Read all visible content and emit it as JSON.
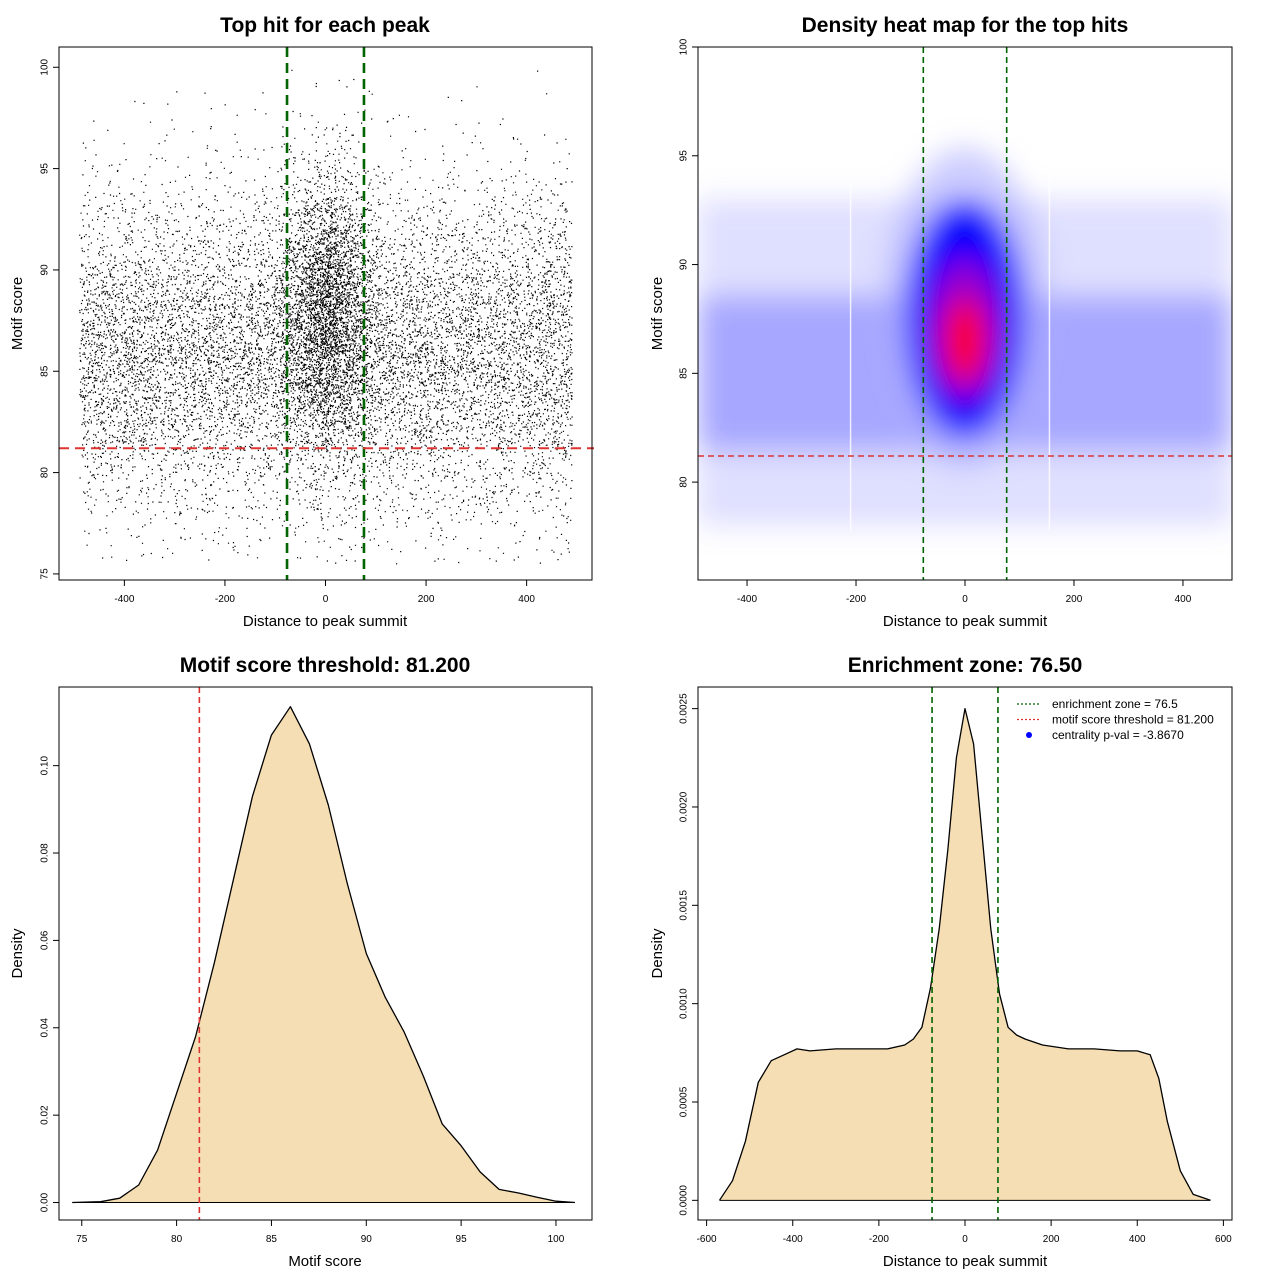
{
  "chart_data": [
    {
      "type": "scatter",
      "title": "Top hit for each peak",
      "xlabel": "Distance to peak summit",
      "ylabel": "Motif score",
      "xlim": [
        -530,
        530
      ],
      "ylim": [
        74.7,
        101.0
      ],
      "xticks": [
        -400,
        -200,
        0,
        200,
        400
      ],
      "yticks": [
        75,
        80,
        85,
        90,
        95,
        100
      ],
      "point_cloud": {
        "x_range": [
          -490,
          490
        ],
        "background_mean_score": 86,
        "background_sd": 4,
        "central_mean_score": 88,
        "central_sd": 3.5,
        "central_sd_x": 45,
        "approx_points": 20000
      },
      "vlines": [
        {
          "x": -76.5,
          "color": "#006400",
          "style": "dashed"
        },
        {
          "x": 76.5,
          "color": "#006400",
          "style": "dashed"
        }
      ],
      "hlines": [
        {
          "y": 81.2,
          "color": "#dd3333",
          "style": "dashed"
        }
      ],
      "grid": false
    },
    {
      "type": "heatmap",
      "title": "Density heat map for the top hits",
      "xlabel": "Distance to peak summit",
      "ylabel": "Motif score",
      "xlim": [
        -490,
        490
      ],
      "ylim": [
        75.5,
        100.0
      ],
      "xticks": [
        -400,
        -200,
        0,
        200,
        400
      ],
      "yticks": [
        80,
        85,
        90,
        95,
        100
      ],
      "colormap": [
        "#ffffff",
        "#0000ff",
        "#ff0000"
      ],
      "peak": {
        "x": 0,
        "y": 86.5
      },
      "vlines": [
        {
          "x": -76.5,
          "color": "#006400",
          "style": "dashed"
        },
        {
          "x": 76.5,
          "color": "#006400",
          "style": "dashed"
        }
      ],
      "hlines": [
        {
          "y": 81.2,
          "color": "#dd3333",
          "style": "dashed"
        }
      ],
      "grid": false
    },
    {
      "type": "area",
      "title": "Motif score threshold: 81.200",
      "xlabel": "Motif score",
      "ylabel": "Density",
      "xlim": [
        73.8,
        101.9
      ],
      "ylim": [
        -0.004,
        0.118
      ],
      "xticks": [
        75,
        80,
        85,
        90,
        95,
        100
      ],
      "yticks": [
        0.0,
        0.02,
        0.04,
        0.06,
        0.08,
        0.1
      ],
      "x": [
        74.5,
        76,
        77,
        78,
        79,
        80,
        81,
        82,
        83,
        84,
        85,
        86,
        87,
        88,
        89,
        90,
        91,
        92,
        93,
        94,
        95,
        96,
        97,
        98,
        99,
        100,
        101
      ],
      "y": [
        0.0,
        0.0002,
        0.001,
        0.004,
        0.012,
        0.025,
        0.038,
        0.055,
        0.074,
        0.093,
        0.107,
        0.1135,
        0.105,
        0.091,
        0.073,
        0.057,
        0.047,
        0.039,
        0.029,
        0.018,
        0.013,
        0.007,
        0.003,
        0.0022,
        0.0012,
        0.0003,
        0.0
      ],
      "fill": "#f5deb3",
      "vlines": [
        {
          "x": 81.2,
          "color": "#dd3333",
          "style": "dashed"
        }
      ],
      "grid": false
    },
    {
      "type": "area",
      "title": "Enrichment zone: 76.50",
      "xlabel": "Distance to peak summit",
      "ylabel": "Density",
      "xlim": [
        -620,
        620
      ],
      "ylim": [
        -0.0001,
        0.00261
      ],
      "xticks": [
        -600,
        -400,
        -200,
        0,
        200,
        400,
        600
      ],
      "yticks": [
        0.0,
        0.0005,
        0.001,
        0.0015,
        0.002,
        0.0025
      ],
      "ytick_labels": [
        "0.0000",
        "0.0005",
        "0.0010",
        "0.0015",
        "0.0020",
        "0.0025"
      ],
      "x": [
        -570,
        -540,
        -510,
        -480,
        -450,
        -420,
        -390,
        -360,
        -300,
        -240,
        -180,
        -140,
        -120,
        -100,
        -80,
        -60,
        -40,
        -20,
        0,
        20,
        40,
        60,
        80,
        100,
        120,
        140,
        180,
        240,
        300,
        360,
        400,
        430,
        450,
        470,
        500,
        530,
        570
      ],
      "y": [
        0.0,
        0.0001,
        0.0003,
        0.0006,
        0.00071,
        0.00074,
        0.00077,
        0.00076,
        0.00077,
        0.00077,
        0.00077,
        0.00079,
        0.00082,
        0.00088,
        0.00108,
        0.00138,
        0.00178,
        0.00225,
        0.0025,
        0.00232,
        0.00185,
        0.00138,
        0.00105,
        0.00088,
        0.00084,
        0.00082,
        0.00079,
        0.00077,
        0.00077,
        0.00076,
        0.00076,
        0.00074,
        0.00062,
        0.0004,
        0.00015,
        3e-05,
        0.0
      ],
      "fill": "#f5deb3",
      "vlines": [
        {
          "x": -76.5,
          "color": "#006400",
          "style": "dashed"
        },
        {
          "x": 76.5,
          "color": "#006400",
          "style": "dashed"
        }
      ],
      "legend": {
        "position": "top-right",
        "items": [
          {
            "label": "enrichment zone = 76.5",
            "color": "#006400",
            "symbol": "dotted-line"
          },
          {
            "label": "motif score threshold = 81.200",
            "color": "#dd3333",
            "symbol": "dotted-line"
          },
          {
            "label": "centrality p-val = -3.8670",
            "color": "#0000ff",
            "symbol": "point"
          }
        ]
      },
      "grid": false
    }
  ]
}
